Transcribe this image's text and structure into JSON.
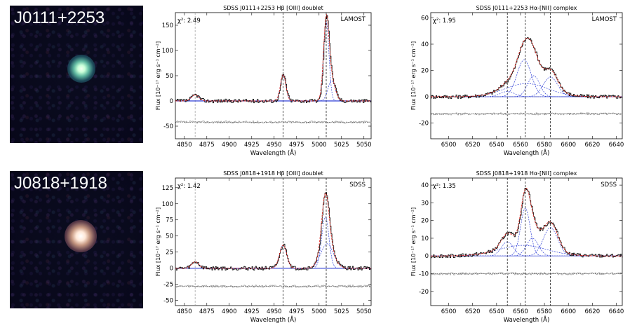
{
  "rows": [
    {
      "object_label": "J0111+2253",
      "hb_panel": {
        "title": "SDSS J0111+2253 Hβ [OIII] doublet",
        "chi2_label": "χ²: 2.49",
        "survey": "LAMOST",
        "ylabel": "Flux [10⁻¹⁷ erg s⁻¹ cm⁻²]",
        "xlabel": "Wavelength (Å)",
        "xticks": [
          "4850",
          "4875",
          "4900",
          "4925",
          "4950",
          "4975",
          "5000",
          "5025",
          "5050"
        ],
        "yticks": [
          "150",
          "100",
          "50",
          "0",
          "-50"
        ]
      },
      "ha_panel": {
        "title": "SDSS J0111+2253 Hα-[NII] complex",
        "chi2_label": "χ²: 1.95",
        "survey": "LAMOST",
        "ylabel": "Flux [10⁻¹⁷ erg s⁻¹ cm⁻²]",
        "xlabel": "Wavelength (Å)",
        "xticks": [
          "6500",
          "6520",
          "6540",
          "6560",
          "6580",
          "6600",
          "6620",
          "6640"
        ],
        "yticks": [
          "60",
          "40",
          "20",
          "0",
          "-20"
        ]
      }
    },
    {
      "object_label": "J0818+1918",
      "hb_panel": {
        "title": "SDSS J0818+1918 Hβ [OIII] doublet",
        "chi2_label": "χ²: 1.42",
        "survey": "SDSS",
        "ylabel": "Flux [10⁻¹⁷ erg s⁻¹ cm⁻²]",
        "xlabel": "Wavelength (Å)",
        "xticks": [
          "4850",
          "4875",
          "4900",
          "4925",
          "4950",
          "4975",
          "5000",
          "5025",
          "5050"
        ],
        "yticks": [
          "125",
          "100",
          "75",
          "50",
          "25",
          "0",
          "-25",
          "-50"
        ]
      },
      "ha_panel": {
        "title": "SDSS J0818+1918 Hα-[NII] complex",
        "chi2_label": "χ²: 1.35",
        "survey": "SDSS",
        "ylabel": "Flux [10⁻¹⁷ erg s⁻¹ cm⁻²]",
        "xlabel": "Wavelength (Å)",
        "xticks": [
          "6500",
          "6520",
          "6540",
          "6560",
          "6580",
          "6600",
          "6620",
          "6640"
        ],
        "yticks": [
          "40",
          "30",
          "20",
          "10",
          "0",
          "-10",
          "-20"
        ]
      }
    }
  ],
  "colors": {
    "data": "#000000",
    "total_fit": "#e0302a",
    "components": "#2f3fd6",
    "residual": "#888888",
    "marker": "#000000"
  },
  "chart_data": [
    {
      "type": "line",
      "title": "SDSS J0111+2253 Hβ [OIII] doublet",
      "xlabel": "Wavelength (Å)",
      "ylabel": "Flux [10⁻¹⁷ erg s⁻¹ cm⁻²]",
      "xlim": [
        4840,
        5058
      ],
      "ylim": [
        -75,
        175
      ],
      "markers": [
        4862,
        4960,
        5008
      ],
      "residual_offset": -42,
      "lines": [
        {
          "center": 4862,
          "amp": 12,
          "sigma": 4
        },
        {
          "center": 4960,
          "amp": 52,
          "sigma": 3
        },
        {
          "center": 5008,
          "amp": 158,
          "sigma": 3
        },
        {
          "center": 5014,
          "amp": 40,
          "sigma": 4
        }
      ],
      "series": [
        {
          "name": "data"
        },
        {
          "name": "total fit"
        },
        {
          "name": "components"
        },
        {
          "name": "residual"
        }
      ]
    },
    {
      "type": "line",
      "title": "SDSS J0111+2253 Hα-[NII] complex",
      "xlabel": "Wavelength (Å)",
      "ylabel": "Flux [10⁻¹⁷ erg s⁻¹ cm⁻²]",
      "xlim": [
        6485,
        6645
      ],
      "ylim": [
        -32,
        64
      ],
      "markers": [
        6549,
        6564,
        6585
      ],
      "residual_offset": -13,
      "lines": [
        {
          "center": 6549,
          "amp": 4,
          "sigma": 6
        },
        {
          "center": 6563,
          "amp": 28,
          "sigma": 6
        },
        {
          "center": 6571,
          "amp": 16,
          "sigma": 5
        },
        {
          "center": 6585,
          "amp": 15,
          "sigma": 6
        },
        {
          "center": 6565,
          "amp": 10,
          "sigma": 18
        }
      ],
      "series": [
        {
          "name": "data"
        },
        {
          "name": "total fit"
        },
        {
          "name": "components"
        },
        {
          "name": "residual"
        }
      ]
    },
    {
      "type": "line",
      "title": "SDSS J0818+1918 Hβ [OIII] doublet",
      "xlabel": "Wavelength (Å)",
      "ylabel": "Flux [10⁻¹⁷ erg s⁻¹ cm⁻²]",
      "xlim": [
        4840,
        5058
      ],
      "ylim": [
        -58,
        140
      ],
      "markers": [
        4862,
        4960,
        5008
      ],
      "residual_offset": -28,
      "lines": [
        {
          "center": 4862,
          "amp": 10,
          "sigma": 4
        },
        {
          "center": 4960,
          "amp": 36,
          "sigma": 4
        },
        {
          "center": 5007,
          "amp": 80,
          "sigma": 4
        },
        {
          "center": 5009,
          "amp": 38,
          "sigma": 7
        }
      ],
      "series": [
        {
          "name": "data"
        },
        {
          "name": "total fit"
        },
        {
          "name": "components"
        },
        {
          "name": "residual"
        }
      ]
    },
    {
      "type": "line",
      "title": "SDSS J0818+1918 Hα-[NII] complex",
      "xlabel": "Wavelength (Å)",
      "ylabel": "Flux [10⁻¹⁷ erg s⁻¹ cm⁻²]",
      "xlim": [
        6485,
        6645
      ],
      "ylim": [
        -28,
        44
      ],
      "markers": [
        6549,
        6564,
        6585
      ],
      "residual_offset": -10,
      "lines": [
        {
          "center": 6549,
          "amp": 8,
          "sigma": 5
        },
        {
          "center": 6564,
          "amp": 27,
          "sigma": 4
        },
        {
          "center": 6570,
          "amp": 10,
          "sigma": 5
        },
        {
          "center": 6585,
          "amp": 16,
          "sigma": 6
        },
        {
          "center": 6562,
          "amp": 6,
          "sigma": 20
        }
      ],
      "series": [
        {
          "name": "data"
        },
        {
          "name": "total fit"
        },
        {
          "name": "components"
        },
        {
          "name": "residual"
        }
      ]
    }
  ]
}
